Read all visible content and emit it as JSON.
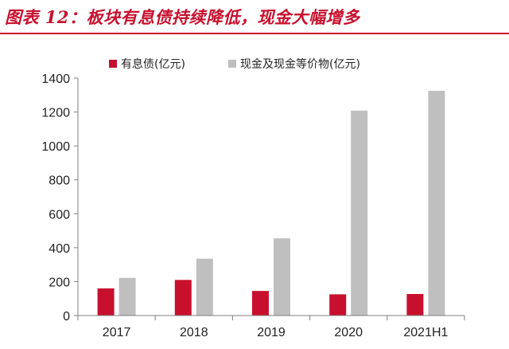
{
  "figure": {
    "title": "图表 12：板块有息债持续降低，现金大幅增多"
  },
  "colors": {
    "title": "#c8102e",
    "series1": "#c8102e",
    "series2": "#bfbfbf",
    "axis": "#7f7f7f"
  },
  "chart_data": {
    "type": "bar",
    "categories": [
      "2017",
      "2018",
      "2019",
      "2020",
      "2021H1"
    ],
    "series": [
      {
        "name": "有息债(亿元)",
        "values": [
          160,
          210,
          145,
          125,
          127
        ]
      },
      {
        "name": "现金及现金等价物(亿元)",
        "values": [
          222,
          335,
          455,
          1208,
          1325
        ]
      }
    ],
    "ylim": [
      0,
      1400
    ],
    "yticks": [
      0,
      200,
      400,
      600,
      800,
      1000,
      1200,
      1400
    ],
    "legend_position": "top",
    "grid": false
  }
}
